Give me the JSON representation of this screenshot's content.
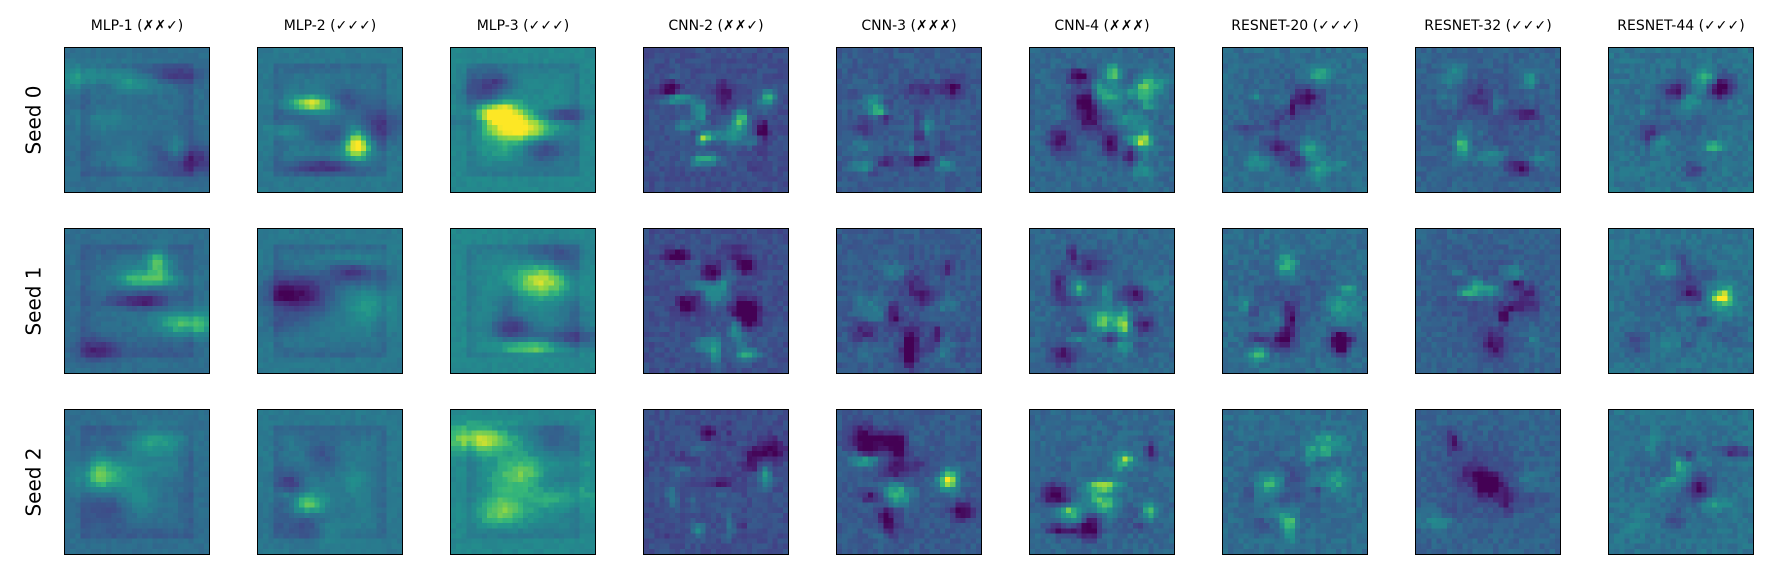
{
  "figure": {
    "columns": [
      {
        "title": "MLP-1 (✗✗✓)",
        "kind": "mlp",
        "base": 0.45
      },
      {
        "title": "MLP-2 (✓✓✓)",
        "kind": "mlp",
        "base": 0.5
      },
      {
        "title": "MLP-3 (✓✓✓)",
        "kind": "mlp",
        "base": 0.58
      },
      {
        "title": "CNN-2 (✗✗✓)",
        "kind": "cnn",
        "base": 0.3
      },
      {
        "title": "CNN-3 (✗✗✗)",
        "kind": "cnn",
        "base": 0.36
      },
      {
        "title": "CNN-4 (✗✗✗)",
        "kind": "cnn",
        "base": 0.42
      },
      {
        "title": "RESNET-20 (✓✓✓)",
        "kind": "resnet",
        "base": 0.45
      },
      {
        "title": "RESNET-32 (✓✓✓)",
        "kind": "resnet",
        "base": 0.4
      },
      {
        "title": "RESNET-44 (✓✓✓)",
        "kind": "resnet",
        "base": 0.48
      }
    ],
    "rows": [
      {
        "label": "Seed 0"
      },
      {
        "label": "Seed 1"
      },
      {
        "label": "Seed 2"
      }
    ],
    "colormap": "viridis"
  }
}
